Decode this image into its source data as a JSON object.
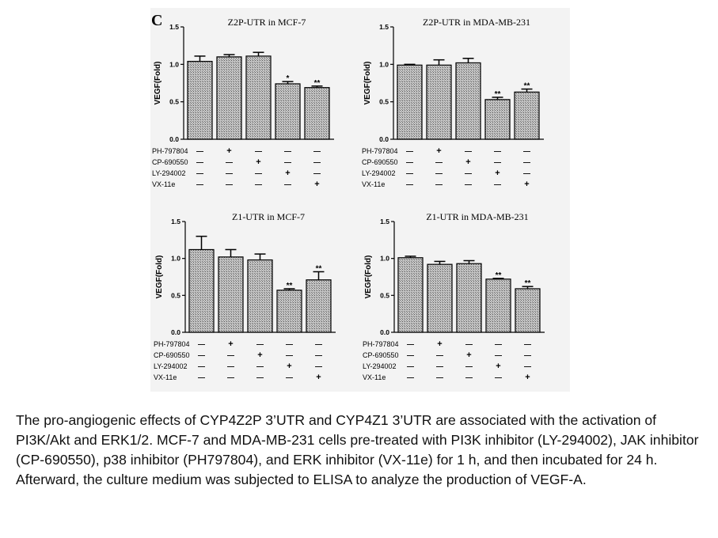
{
  "panel_letter": "C",
  "caption": "The pro-angiogenic effects of CYP4Z2P 3’UTR and CYP4Z1 3’UTR are associated with the activation of PI3K/Akt and ERK1/2. MCF-7 and MDA-MB-231 cells pre-treated with PI3K inhibitor (LY-294002), JAK inhibitor (CP-690550), p38 inhibitor (PH797804), and ERK inhibitor (VX-11e) for 1 h, and then incubated for 24 h. Afterward, the culture medium was subjected to ELISA to analyze the production of VEGF-A.",
  "colors": {
    "bar_fill": "#a9a9a9",
    "bar_stroke": "#000000",
    "figure_background": "#f3f3f3"
  },
  "chart_data": [
    {
      "type": "bar",
      "title": "Z2P-UTR in MCF-7",
      "ylabel": "VEGF(Fold)",
      "ylim": [
        0,
        1.5
      ],
      "yticks": [
        "0.0",
        "0.5",
        "1.0",
        "1.5"
      ],
      "values": [
        1.04,
        1.1,
        1.11,
        0.74,
        0.69
      ],
      "errors": [
        0.07,
        0.03,
        0.05,
        0.03,
        0.02
      ],
      "significance": [
        "",
        "",
        "",
        "*",
        "**"
      ],
      "treatments": [
        {
          "name": "PH-797804",
          "signs": [
            "—",
            "+",
            "—",
            "—",
            "—"
          ]
        },
        {
          "name": "CP-690550",
          "signs": [
            "—",
            "—",
            "+",
            "—",
            "—"
          ]
        },
        {
          "name": "LY-294002",
          "signs": [
            "—",
            "—",
            "—",
            "+",
            "—"
          ]
        },
        {
          "name": "VX-11e",
          "signs": [
            "—",
            "—",
            "—",
            "—",
            "+"
          ]
        }
      ]
    },
    {
      "type": "bar",
      "title": "Z2P-UTR in MDA-MB-231",
      "ylabel": "VEGF(Fold)",
      "ylim": [
        0,
        1.5
      ],
      "yticks": [
        "0.0",
        "0.5",
        "1.0",
        "1.5"
      ],
      "values": [
        0.99,
        0.99,
        1.02,
        0.53,
        0.63
      ],
      "errors": [
        0.01,
        0.07,
        0.06,
        0.03,
        0.04
      ],
      "significance": [
        "",
        "",
        "",
        "**",
        "**"
      ],
      "treatments": [
        {
          "name": "PH-797804",
          "signs": [
            "—",
            "+",
            "—",
            "—",
            "—"
          ]
        },
        {
          "name": "CP-690550",
          "signs": [
            "—",
            "—",
            "+",
            "—",
            "—"
          ]
        },
        {
          "name": "LY-294002",
          "signs": [
            "—",
            "—",
            "—",
            "+",
            "—"
          ]
        },
        {
          "name": "VX-11e",
          "signs": [
            "—",
            "—",
            "—",
            "—",
            "+"
          ]
        }
      ]
    },
    {
      "type": "bar",
      "title": "Z1-UTR in MCF-7",
      "ylabel": "VEGF(Fold)",
      "ylim": [
        0,
        1.5
      ],
      "yticks": [
        "0.0",
        "0.5",
        "1.0",
        "1.5"
      ],
      "values": [
        1.12,
        1.02,
        0.98,
        0.57,
        0.71
      ],
      "errors": [
        0.18,
        0.1,
        0.08,
        0.02,
        0.11
      ],
      "significance": [
        "",
        "",
        "",
        "**",
        "**"
      ],
      "treatments": [
        {
          "name": "PH-797804",
          "signs": [
            "—",
            "+",
            "—",
            "—",
            "—"
          ]
        },
        {
          "name": "CP-690550",
          "signs": [
            "—",
            "—",
            "+",
            "—",
            "—"
          ]
        },
        {
          "name": "LY-294002",
          "signs": [
            "—",
            "—",
            "—",
            "+",
            "—"
          ]
        },
        {
          "name": "VX-11e",
          "signs": [
            "—",
            "—",
            "—",
            "—",
            "+"
          ]
        }
      ]
    },
    {
      "type": "bar",
      "title": "Z1-UTR in MDA-MB-231",
      "ylabel": "VEGF(Fold)",
      "ylim": [
        0,
        1.5
      ],
      "yticks": [
        "0.0",
        "0.5",
        "1.0",
        "1.5"
      ],
      "values": [
        1.01,
        0.92,
        0.93,
        0.72,
        0.59
      ],
      "errors": [
        0.02,
        0.04,
        0.04,
        0.01,
        0.03
      ],
      "significance": [
        "",
        "",
        "",
        "**",
        "**"
      ],
      "treatments": [
        {
          "name": "PH-797804",
          "signs": [
            "—",
            "+",
            "—",
            "—",
            "—"
          ]
        },
        {
          "name": "CP-690550",
          "signs": [
            "—",
            "—",
            "+",
            "—",
            "—"
          ]
        },
        {
          "name": "LY-294002",
          "signs": [
            "—",
            "—",
            "—",
            "+",
            "—"
          ]
        },
        {
          "name": "VX-11e",
          "signs": [
            "—",
            "—",
            "—",
            "—",
            "+"
          ]
        }
      ]
    }
  ]
}
